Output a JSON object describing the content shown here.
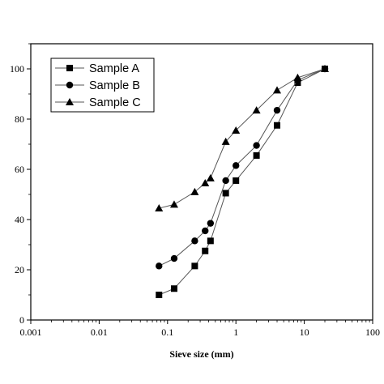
{
  "chart_data": {
    "type": "line",
    "xscale": "log",
    "xlim": [
      0.001,
      100
    ],
    "ylim": [
      0,
      110
    ],
    "xlabel": "Sieve size (mm)",
    "ylabel": "",
    "xticks": [
      "0.001",
      "0.01",
      "0.1",
      "1",
      "10",
      "100"
    ],
    "yticks": [
      "0",
      "20",
      "40",
      "60",
      "80",
      "100"
    ],
    "grid": false,
    "legend_position": "top-left",
    "series": [
      {
        "name": "Sample A",
        "marker": "square",
        "x": [
          0.075,
          0.125,
          0.25,
          0.355,
          0.425,
          0.71,
          1,
          2,
          4,
          8,
          20
        ],
        "y": [
          10,
          12.5,
          21.5,
          27.5,
          31.5,
          50.5,
          55.5,
          65.5,
          77.5,
          94.5,
          100
        ]
      },
      {
        "name": "Sample B",
        "marker": "circle",
        "x": [
          0.075,
          0.125,
          0.25,
          0.355,
          0.425,
          0.71,
          1,
          2,
          4,
          8,
          20
        ],
        "y": [
          21.5,
          24.5,
          31.5,
          35.5,
          38.5,
          55.5,
          61.5,
          69.5,
          83.5,
          95.5,
          100
        ]
      },
      {
        "name": "Sample C",
        "marker": "triangle",
        "x": [
          0.075,
          0.125,
          0.25,
          0.355,
          0.425,
          0.71,
          1,
          2,
          4,
          8,
          20
        ],
        "y": [
          44.5,
          46,
          51,
          54.5,
          56.5,
          71,
          75.5,
          83.5,
          91.5,
          96.5,
          100
        ]
      }
    ]
  }
}
